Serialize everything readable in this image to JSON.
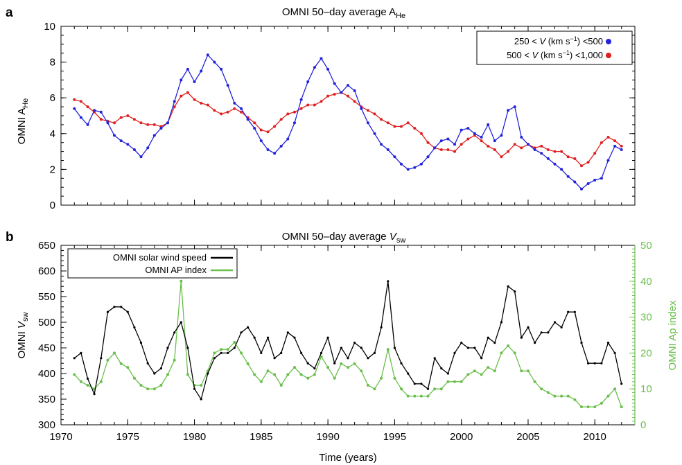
{
  "panel_a": {
    "letter": "a",
    "title_main": "OMNI 50–day average A",
    "title_sub": "He",
    "ylabel_main": "OMNI A",
    "ylabel_sub": "He",
    "legend": [
      {
        "pre": "250 < ",
        "var": "V",
        "unit": " (km s",
        "sup": "−1",
        "post": ") <500",
        "color": "#2222dd"
      },
      {
        "pre": "500 < ",
        "var": "V",
        "unit": " (km s",
        "sup": "−1",
        "post": ") <1,000",
        "color": "#e02020"
      }
    ]
  },
  "panel_b": {
    "letter": "b",
    "title_main": "OMNI 50–day average ",
    "title_var": "V",
    "title_sub": "sw",
    "ylabel_main": "OMNI ",
    "ylabel_var": "V",
    "ylabel_sub": "sw",
    "y2label": "OMNI Ap index",
    "legend": [
      {
        "label": "OMNI solar wind speed",
        "color": "#000000"
      },
      {
        "label": "OMNI AP index",
        "color": "#6abf4b"
      }
    ],
    "xlabel": "Time (years)"
  },
  "chart_data": [
    {
      "type": "line",
      "xlim": [
        1970,
        2013
      ],
      "ylim": [
        0,
        10
      ],
      "yticks": [
        "0",
        "2",
        "4",
        "6",
        "8",
        "10"
      ],
      "series": [
        {
          "name": "250 < V (km s−1) <500",
          "color": "#2222dd",
          "x": [
            1971.0,
            1971.5,
            1972.0,
            1972.5,
            1973.0,
            1973.5,
            1974.0,
            1974.5,
            1975.0,
            1975.5,
            1976.0,
            1976.5,
            1977.0,
            1977.5,
            1978.0,
            1978.5,
            1979.0,
            1979.5,
            1980.0,
            1980.5,
            1981.0,
            1981.5,
            1982.0,
            1982.5,
            1983.0,
            1983.5,
            1984.0,
            1984.5,
            1985.0,
            1985.5,
            1986.0,
            1986.5,
            1987.0,
            1987.5,
            1988.0,
            1988.5,
            1989.0,
            1989.5,
            1990.0,
            1990.5,
            1991.0,
            1991.5,
            1992.0,
            1992.5,
            1993.0,
            1993.5,
            1994.0,
            1994.5,
            1995.0,
            1995.5,
            1996.0,
            1996.5,
            1997.0,
            1997.5,
            1998.0,
            1998.5,
            1999.0,
            1999.5,
            2000.0,
            2000.5,
            2001.0,
            2001.5,
            2002.0,
            2002.5,
            2003.0,
            2003.5,
            2004.0,
            2004.5,
            2005.0,
            2005.5,
            2006.0,
            2006.5,
            2007.0,
            2007.5,
            2008.0,
            2008.5,
            2009.0,
            2009.5,
            2010.0,
            2010.5,
            2011.0,
            2011.5,
            2012.0
          ],
          "y": [
            5.4,
            4.9,
            4.5,
            5.3,
            5.2,
            4.6,
            3.9,
            3.6,
            3.4,
            3.1,
            2.7,
            3.2,
            3.9,
            4.3,
            4.6,
            5.8,
            7.0,
            7.6,
            6.9,
            7.5,
            8.4,
            8.0,
            7.6,
            6.7,
            5.7,
            5.4,
            4.8,
            4.3,
            3.6,
            3.1,
            2.9,
            3.3,
            3.7,
            4.6,
            5.9,
            6.9,
            7.7,
            8.2,
            7.6,
            6.8,
            6.3,
            6.7,
            6.4,
            5.4,
            4.6,
            4.0,
            3.4,
            3.1,
            2.7,
            2.3,
            2.0,
            2.1,
            2.3,
            2.7,
            3.2,
            3.6,
            3.7,
            3.4,
            4.2,
            4.3,
            4.0,
            3.8,
            4.5,
            3.6,
            3.9,
            5.3,
            5.5,
            3.8,
            3.4,
            3.1,
            2.9,
            2.6,
            2.3,
            2.0,
            1.6,
            1.3,
            0.9,
            1.2,
            1.4,
            1.5,
            2.5,
            3.3,
            3.1
          ]
        },
        {
          "name": "500 < V (km s−1) <1,000",
          "color": "#e02020",
          "x": [
            1971.0,
            1971.5,
            1972.0,
            1972.5,
            1973.0,
            1973.5,
            1974.0,
            1974.5,
            1975.0,
            1975.5,
            1976.0,
            1976.5,
            1977.0,
            1977.5,
            1978.0,
            1978.5,
            1979.0,
            1979.5,
            1980.0,
            1980.5,
            1981.0,
            1981.5,
            1982.0,
            1982.5,
            1983.0,
            1983.5,
            1984.0,
            1984.5,
            1985.0,
            1985.5,
            1986.0,
            1986.5,
            1987.0,
            1987.5,
            1988.0,
            1988.5,
            1989.0,
            1989.5,
            1990.0,
            1990.5,
            1991.0,
            1991.5,
            1992.0,
            1992.5,
            1993.0,
            1993.5,
            1994.0,
            1994.5,
            1995.0,
            1995.5,
            1996.0,
            1996.5,
            1997.0,
            1997.5,
            1998.0,
            1998.5,
            1999.0,
            1999.5,
            2000.0,
            2000.5,
            2001.0,
            2001.5,
            2002.0,
            2002.5,
            2003.0,
            2003.5,
            2004.0,
            2004.5,
            2005.0,
            2005.5,
            2006.0,
            2006.5,
            2007.0,
            2007.5,
            2008.0,
            2008.5,
            2009.0,
            2009.5,
            2010.0,
            2010.5,
            2011.0,
            2011.5,
            2012.0
          ],
          "y": [
            5.9,
            5.8,
            5.5,
            5.2,
            4.8,
            4.7,
            4.6,
            4.9,
            5.0,
            4.8,
            4.6,
            4.5,
            4.5,
            4.4,
            4.6,
            5.5,
            6.1,
            6.3,
            5.9,
            5.7,
            5.6,
            5.3,
            5.1,
            5.2,
            5.4,
            5.2,
            4.9,
            4.6,
            4.2,
            4.1,
            4.4,
            4.8,
            5.1,
            5.2,
            5.4,
            5.6,
            5.6,
            5.8,
            6.1,
            6.2,
            6.3,
            6.1,
            5.8,
            5.5,
            5.3,
            5.1,
            4.8,
            4.6,
            4.4,
            4.4,
            4.6,
            4.3,
            4.0,
            3.5,
            3.2,
            3.1,
            3.1,
            3.0,
            3.4,
            3.7,
            3.9,
            3.6,
            3.3,
            3.1,
            2.7,
            3.0,
            3.4,
            3.2,
            3.4,
            3.2,
            3.3,
            3.1,
            3.0,
            3.0,
            2.7,
            2.6,
            2.2,
            2.4,
            2.9,
            3.5,
            3.8,
            3.6,
            3.3
          ]
        }
      ]
    },
    {
      "type": "line",
      "xlim": [
        1970,
        2013
      ],
      "ylim": [
        300,
        650
      ],
      "y2lim": [
        0,
        50
      ],
      "xticks": [
        "1970",
        "1975",
        "1980",
        "1985",
        "1990",
        "1995",
        "2000",
        "2005",
        "2010"
      ],
      "yticks": [
        "300",
        "350",
        "400",
        "450",
        "500",
        "550",
        "600",
        "650"
      ],
      "y2ticks": [
        "0",
        "10",
        "20",
        "30",
        "40",
        "50"
      ],
      "xlabel": "Time (years)",
      "series": [
        {
          "name": "OMNI solar wind speed",
          "axis": "left",
          "color": "#000000",
          "x": [
            1971.0,
            1971.5,
            1972.0,
            1972.5,
            1973.0,
            1973.5,
            1974.0,
            1974.5,
            1975.0,
            1975.5,
            1976.0,
            1976.5,
            1977.0,
            1977.5,
            1978.0,
            1978.5,
            1979.0,
            1979.5,
            1980.0,
            1980.5,
            1981.0,
            1981.5,
            1982.0,
            1982.5,
            1983.0,
            1983.5,
            1984.0,
            1984.5,
            1985.0,
            1985.5,
            1986.0,
            1986.5,
            1987.0,
            1987.5,
            1988.0,
            1988.5,
            1989.0,
            1989.5,
            1990.0,
            1990.5,
            1991.0,
            1991.5,
            1992.0,
            1992.5,
            1993.0,
            1993.5,
            1994.0,
            1994.5,
            1995.0,
            1995.5,
            1996.0,
            1996.5,
            1997.0,
            1997.5,
            1998.0,
            1998.5,
            1999.0,
            1999.5,
            2000.0,
            2000.5,
            2001.0,
            2001.5,
            2002.0,
            2002.5,
            2003.0,
            2003.5,
            2004.0,
            2004.5,
            2005.0,
            2005.5,
            2006.0,
            2006.5,
            2007.0,
            2007.5,
            2008.0,
            2008.5,
            2009.0,
            2009.5,
            2010.0,
            2010.5,
            2011.0,
            2011.5,
            2012.0
          ],
          "y": [
            430,
            440,
            390,
            360,
            430,
            520,
            530,
            530,
            520,
            490,
            460,
            420,
            400,
            410,
            450,
            480,
            500,
            450,
            370,
            350,
            400,
            430,
            440,
            440,
            450,
            480,
            490,
            470,
            440,
            470,
            430,
            440,
            480,
            470,
            440,
            420,
            410,
            440,
            470,
            420,
            450,
            430,
            460,
            450,
            430,
            440,
            490,
            580,
            450,
            420,
            400,
            380,
            380,
            370,
            430,
            410,
            400,
            440,
            460,
            450,
            450,
            430,
            470,
            460,
            500,
            570,
            560,
            470,
            490,
            460,
            480,
            480,
            500,
            490,
            520,
            520,
            460,
            420,
            420,
            420,
            460,
            440,
            380
          ]
        },
        {
          "name": "OMNI AP index",
          "axis": "right",
          "color": "#6abf4b",
          "x": [
            1971.0,
            1971.5,
            1972.0,
            1972.5,
            1973.0,
            1973.5,
            1974.0,
            1974.5,
            1975.0,
            1975.5,
            1976.0,
            1976.5,
            1977.0,
            1977.5,
            1978.0,
            1978.5,
            1979.0,
            1979.5,
            1980.0,
            1980.5,
            1981.0,
            1981.5,
            1982.0,
            1982.5,
            1983.0,
            1983.5,
            1984.0,
            1984.5,
            1985.0,
            1985.5,
            1986.0,
            1986.5,
            1987.0,
            1987.5,
            1988.0,
            1988.5,
            1989.0,
            1989.5,
            1990.0,
            1990.5,
            1991.0,
            1991.5,
            1992.0,
            1992.5,
            1993.0,
            1993.5,
            1994.0,
            1994.5,
            1995.0,
            1995.5,
            1996.0,
            1996.5,
            1997.0,
            1997.5,
            1998.0,
            1998.5,
            1999.0,
            1999.5,
            2000.0,
            2000.5,
            2001.0,
            2001.5,
            2002.0,
            2002.5,
            2003.0,
            2003.5,
            2004.0,
            2004.5,
            2005.0,
            2005.5,
            2006.0,
            2006.5,
            2007.0,
            2007.5,
            2008.0,
            2008.5,
            2009.0,
            2009.5,
            2010.0,
            2010.5,
            2011.0,
            2011.5,
            2012.0
          ],
          "y": [
            14,
            12,
            11,
            10,
            12,
            18,
            20,
            17,
            16,
            13,
            11,
            10,
            10,
            11,
            14,
            18,
            40,
            14,
            11,
            11,
            15,
            20,
            21,
            21,
            23,
            20,
            17,
            14,
            12,
            15,
            14,
            11,
            14,
            16,
            14,
            13,
            14,
            19,
            16,
            13,
            17,
            16,
            17,
            15,
            11,
            10,
            13,
            21,
            13,
            10,
            8,
            8,
            8,
            8,
            10,
            10,
            12,
            12,
            12,
            14,
            15,
            14,
            16,
            15,
            20,
            22,
            20,
            15,
            15,
            12,
            10,
            9,
            8,
            8,
            8,
            7,
            5,
            5,
            5,
            6,
            8,
            10,
            5
          ]
        }
      ]
    }
  ]
}
